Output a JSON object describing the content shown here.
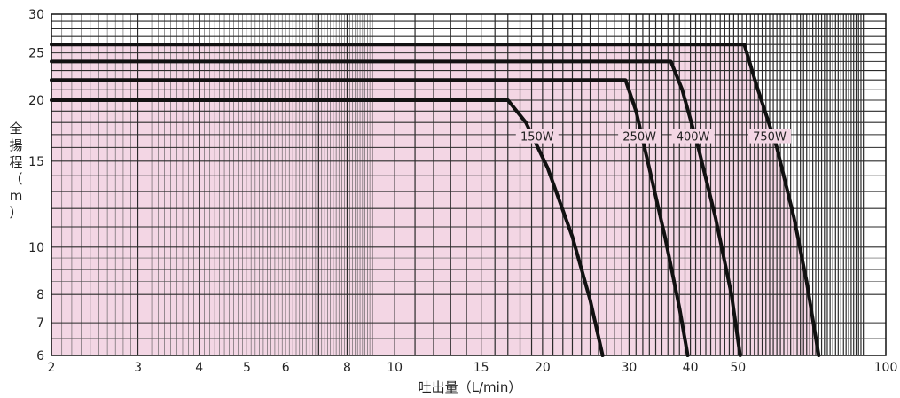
{
  "chart_data": {
    "type": "line",
    "xscale": "log",
    "yscale": "log",
    "xlim": [
      2,
      100
    ],
    "ylim": [
      6,
      30
    ],
    "xlabel": "吐出量（L/min）",
    "ylabel": "全揚程（m）",
    "ylabel_chars": [
      "全",
      "揚",
      "程",
      "（",
      "m",
      "）"
    ],
    "x_ticks": [
      2,
      3,
      4,
      5,
      6,
      8,
      10,
      15,
      20,
      30,
      40,
      50,
      100
    ],
    "x_tick_labels": [
      "2",
      "3",
      "4",
      "5",
      "6",
      "8",
      "10",
      "15",
      "20",
      "30",
      "40",
      "50",
      "100"
    ],
    "y_ticks": [
      6,
      7,
      8,
      10,
      15,
      20,
      25,
      30
    ],
    "y_tick_labels": [
      "6",
      "7",
      "8",
      "10",
      "15",
      "20",
      "25",
      "30"
    ],
    "grid": true,
    "series": [
      {
        "name": "150W",
        "x": [
          2,
          17.0,
          18.5,
          20.5,
          23.0,
          25.0,
          26.5
        ],
        "y": [
          20,
          20,
          18.0,
          14.5,
          10.5,
          7.8,
          6
        ]
      },
      {
        "name": "250W",
        "x": [
          2,
          29.5,
          31.0,
          33.0,
          35.5,
          38.0,
          39.5
        ],
        "y": [
          22,
          22,
          19.0,
          14.5,
          10.5,
          7.5,
          6
        ]
      },
      {
        "name": "400W",
        "x": [
          2,
          36.5,
          38.5,
          41.5,
          45.0,
          48.5,
          50.5
        ],
        "y": [
          24,
          24,
          21.0,
          16.0,
          11.5,
          8.0,
          6
        ]
      },
      {
        "name": "750W",
        "x": [
          2,
          51.5,
          54.5,
          60.0,
          65.0,
          69.0,
          73.0
        ],
        "y": [
          26,
          26,
          21.5,
          16.0,
          11.5,
          8.5,
          6
        ]
      }
    ],
    "label_positions": [
      {
        "name": "150W",
        "x": 19.5,
        "y": 16.6
      },
      {
        "name": "250W",
        "x": 31.5,
        "y": 16.6
      },
      {
        "name": "400W",
        "x": 40.5,
        "y": 16.6
      },
      {
        "name": "750W",
        "x": 58.0,
        "y": 16.6
      }
    ],
    "colors": {
      "fill": "#f3d6e4",
      "grid_major": "#2a2a2a",
      "grid_minor": "#555555",
      "curve": "#111111"
    }
  }
}
